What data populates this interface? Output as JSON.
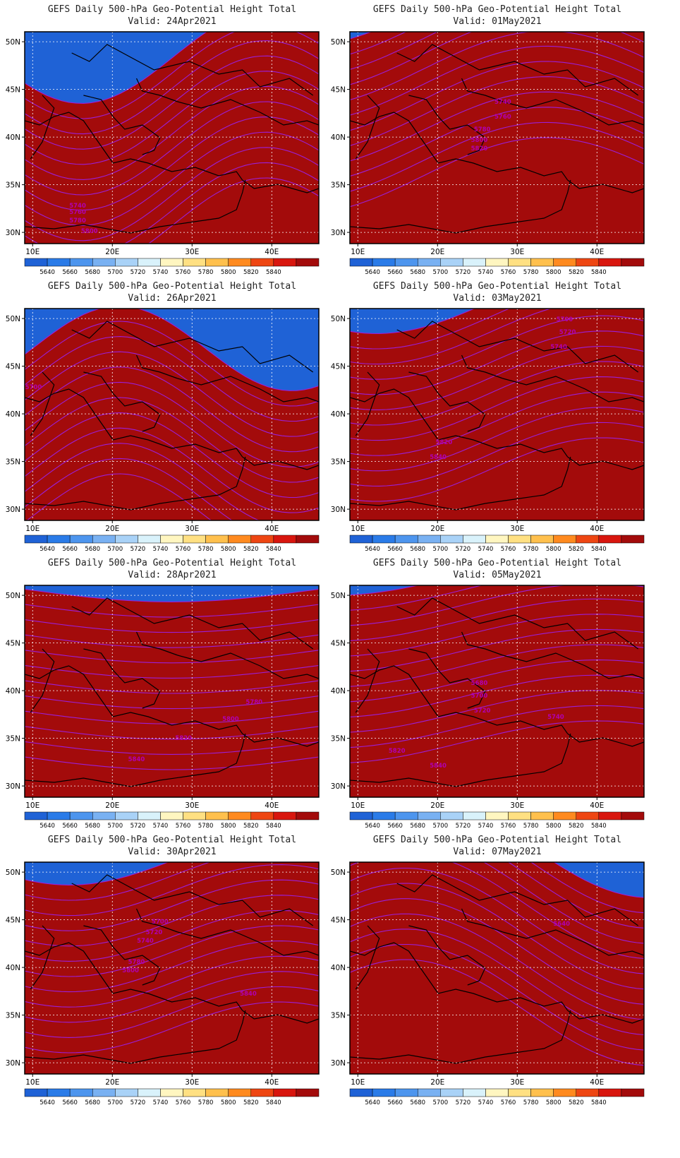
{
  "figure": {
    "title_line1": "GEFS Daily 500-hPa Geo-Potential Height Total",
    "lon_ticks": [
      "10E",
      "20E",
      "30E",
      "40E"
    ],
    "lat_ticks": [
      "50N",
      "45N",
      "40N",
      "35N",
      "30N"
    ],
    "colorbar": {
      "labels": [
        "5640",
        "5660",
        "5680",
        "5700",
        "5720",
        "5740",
        "5760",
        "5780",
        "5800",
        "5820",
        "5840"
      ],
      "colors": [
        "#1f62d6",
        "#2a7be8",
        "#4d95ee",
        "#79b1f2",
        "#a9d2f7",
        "#d9f2fb",
        "#fff6c0",
        "#ffe082",
        "#ffc04d",
        "#ff8a1f",
        "#ee4612",
        "#d8160e",
        "#a30b0b"
      ]
    }
  },
  "panels": [
    {
      "valid": "Valid: 24Apr2021",
      "contour_labels": [
        "5740",
        "5760",
        "5780",
        "5800"
      ]
    },
    {
      "valid": "Valid: 01May2021",
      "contour_labels": [
        "5740",
        "5760",
        "5780",
        "5800",
        "5820"
      ]
    },
    {
      "valid": "Valid: 26Apr2021",
      "contour_labels": [
        "5700"
      ]
    },
    {
      "valid": "Valid: 03May2021",
      "contour_labels": [
        "5700",
        "5720",
        "5740",
        "5820",
        "5840"
      ]
    },
    {
      "valid": "Valid: 28Apr2021",
      "contour_labels": [
        "5780",
        "5800",
        "5820",
        "5840"
      ]
    },
    {
      "valid": "Valid: 05May2021",
      "contour_labels": [
        "5680",
        "5700",
        "5720",
        "5740",
        "5820",
        "5840"
      ]
    },
    {
      "valid": "Valid: 30Apr2021",
      "contour_labels": [
        "5700",
        "5720",
        "5740",
        "5780",
        "5800",
        "5840"
      ]
    },
    {
      "valid": "Valid: 07May2021",
      "contour_labels": [
        "5640"
      ]
    }
  ]
}
